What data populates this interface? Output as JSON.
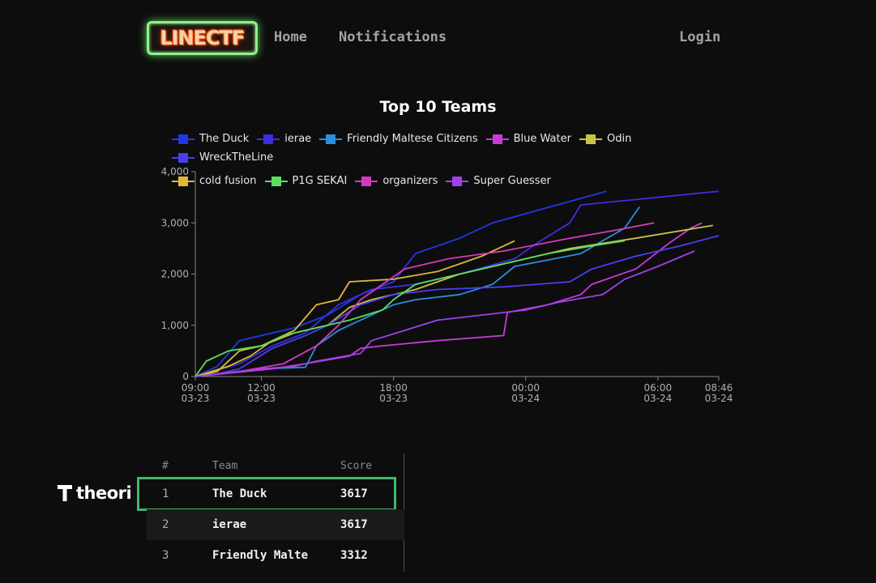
{
  "nav": {
    "logo_text": "LINECTF",
    "links": [
      "Home",
      "Notifications"
    ],
    "login": "Login"
  },
  "colors": {
    "background": "#0d0d0d",
    "logo_border": "#8df08a",
    "highlight_border": "#3fb86a"
  },
  "chart_data": {
    "type": "line",
    "title": "Top 10 Teams",
    "xlabel": "",
    "ylabel": "",
    "ylim": [
      0,
      4000
    ],
    "yticks": [
      "0",
      "1,000",
      "2,000",
      "3,000",
      "4,000"
    ],
    "xlim": [
      "2024-03-23 09:00",
      "2024-03-24 08:46"
    ],
    "xticks": [
      {
        "t": "2024-03-23 09:00",
        "time": "09:00",
        "date": "03-23"
      },
      {
        "t": "2024-03-23 12:00",
        "time": "12:00",
        "date": "03-23"
      },
      {
        "t": "2024-03-23 18:00",
        "time": "18:00",
        "date": "03-23"
      },
      {
        "t": "2024-03-24 00:00",
        "time": "00:00",
        "date": "03-24"
      },
      {
        "t": "2024-03-24 06:00",
        "time": "06:00",
        "date": "03-24"
      },
      {
        "t": "2024-03-24 08:46",
        "time": "08:46",
        "date": "03-24"
      }
    ],
    "grid": false,
    "legend": "top",
    "series": [
      {
        "name": "The Duck",
        "color": "#2038e8",
        "points": [
          [
            "2024-03-23 09:00",
            0
          ],
          [
            "2024-03-23 10:00",
            200
          ],
          [
            "2024-03-23 11:00",
            700
          ],
          [
            "2024-03-23 12:00",
            800
          ],
          [
            "2024-03-23 13:30",
            950
          ],
          [
            "2024-03-23 15:00",
            1200
          ],
          [
            "2024-03-23 16:30",
            1600
          ],
          [
            "2024-03-23 18:00",
            1850
          ],
          [
            "2024-03-23 19:00",
            2400
          ],
          [
            "2024-03-23 21:00",
            2700
          ],
          [
            "2024-03-23 22:30",
            3000
          ],
          [
            "2024-03-24 01:00",
            3300
          ],
          [
            "2024-03-24 03:40",
            3617
          ]
        ]
      },
      {
        "name": "ierae",
        "color": "#3b2ee0",
        "points": [
          [
            "2024-03-23 09:00",
            0
          ],
          [
            "2024-03-23 11:00",
            250
          ],
          [
            "2024-03-23 12:30",
            600
          ],
          [
            "2024-03-23 14:00",
            850
          ],
          [
            "2024-03-23 15:30",
            1400
          ],
          [
            "2024-03-23 17:00",
            1700
          ],
          [
            "2024-03-23 19:00",
            1800
          ],
          [
            "2024-03-23 21:00",
            2000
          ],
          [
            "2024-03-23 23:30",
            2300
          ],
          [
            "2024-03-24 00:30",
            2600
          ],
          [
            "2024-03-24 02:00",
            3000
          ],
          [
            "2024-03-24 02:30",
            3350
          ],
          [
            "2024-03-24 08:46",
            3617
          ]
        ]
      },
      {
        "name": "Friendly Maltese Citizens",
        "color": "#2a8ee0",
        "points": [
          [
            "2024-03-23 09:00",
            0
          ],
          [
            "2024-03-23 12:00",
            150
          ],
          [
            "2024-03-23 14:00",
            180
          ],
          [
            "2024-03-23 14:30",
            600
          ],
          [
            "2024-03-23 15:30",
            900
          ],
          [
            "2024-03-23 17:00",
            1200
          ],
          [
            "2024-03-23 18:00",
            1400
          ],
          [
            "2024-03-23 19:00",
            1500
          ],
          [
            "2024-03-23 21:00",
            1600
          ],
          [
            "2024-03-23 22:30",
            1800
          ],
          [
            "2024-03-23 23:30",
            2150
          ],
          [
            "2024-03-24 02:30",
            2400
          ],
          [
            "2024-03-24 04:30",
            2900
          ],
          [
            "2024-03-24 05:10",
            3312
          ]
        ]
      },
      {
        "name": "Blue Water",
        "color": "#c93ad8",
        "points": [
          [
            "2024-03-23 09:00",
            0
          ],
          [
            "2024-03-23 12:30",
            150
          ],
          [
            "2024-03-23 14:00",
            250
          ],
          [
            "2024-03-23 16:00",
            400
          ],
          [
            "2024-03-23 16:30",
            550
          ],
          [
            "2024-03-23 17:30",
            600
          ],
          [
            "2024-03-23 20:00",
            700
          ],
          [
            "2024-03-23 23:00",
            800
          ],
          [
            "2024-03-23 23:10",
            1250
          ],
          [
            "2024-03-24 01:00",
            1400
          ],
          [
            "2024-03-24 02:30",
            1600
          ],
          [
            "2024-03-24 03:00",
            1800
          ],
          [
            "2024-03-24 05:00",
            2100
          ],
          [
            "2024-03-24 06:30",
            2600
          ],
          [
            "2024-03-24 07:30",
            2900
          ],
          [
            "2024-03-24 08:00",
            3000
          ]
        ]
      },
      {
        "name": "Odin",
        "color": "#c8c248",
        "points": [
          [
            "2024-03-23 09:00",
            0
          ],
          [
            "2024-03-23 10:00",
            100
          ],
          [
            "2024-03-23 11:00",
            500
          ],
          [
            "2024-03-23 12:00",
            600
          ],
          [
            "2024-03-23 13:30",
            850
          ],
          [
            "2024-03-23 15:00",
            1000
          ],
          [
            "2024-03-23 16:00",
            1350
          ],
          [
            "2024-03-23 17:00",
            1500
          ],
          [
            "2024-03-23 19:00",
            1700
          ],
          [
            "2024-03-23 21:00",
            2000
          ],
          [
            "2024-03-23 23:00",
            2200
          ],
          [
            "2024-03-24 02:00",
            2500
          ],
          [
            "2024-03-24 05:00",
            2700
          ],
          [
            "2024-03-24 08:30",
            2950
          ]
        ]
      },
      {
        "name": "WreckTheLine",
        "color": "#4a3ef0",
        "points": [
          [
            "2024-03-23 09:00",
            0
          ],
          [
            "2024-03-23 10:00",
            50
          ],
          [
            "2024-03-23 11:00",
            150
          ],
          [
            "2024-03-23 12:30",
            550
          ],
          [
            "2024-03-23 14:00",
            800
          ],
          [
            "2024-03-23 15:00",
            1000
          ],
          [
            "2024-03-23 16:30",
            1400
          ],
          [
            "2024-03-23 18:00",
            1600
          ],
          [
            "2024-03-23 20:00",
            1700
          ],
          [
            "2024-03-23 23:00",
            1750
          ],
          [
            "2024-03-24 02:00",
            1850
          ],
          [
            "2024-03-24 03:00",
            2100
          ],
          [
            "2024-03-24 05:00",
            2350
          ],
          [
            "2024-03-24 07:00",
            2550
          ],
          [
            "2024-03-24 08:46",
            2750
          ]
        ]
      },
      {
        "name": "cold fusion",
        "color": "#e0b838",
        "points": [
          [
            "2024-03-23 09:00",
            0
          ],
          [
            "2024-03-23 10:30",
            200
          ],
          [
            "2024-03-23 11:30",
            400
          ],
          [
            "2024-03-23 12:30",
            700
          ],
          [
            "2024-03-23 13:30",
            900
          ],
          [
            "2024-03-23 14:30",
            1400
          ],
          [
            "2024-03-23 15:30",
            1500
          ],
          [
            "2024-03-23 16:00",
            1850
          ],
          [
            "2024-03-23 18:00",
            1900
          ],
          [
            "2024-03-23 20:00",
            2050
          ],
          [
            "2024-03-23 22:00",
            2350
          ],
          [
            "2024-03-23 23:30",
            2650
          ]
        ]
      },
      {
        "name": "P1G SEKAI",
        "color": "#58e060",
        "points": [
          [
            "2024-03-23 09:00",
            0
          ],
          [
            "2024-03-23 09:30",
            300
          ],
          [
            "2024-03-23 10:30",
            500
          ],
          [
            "2024-03-23 12:00",
            600
          ],
          [
            "2024-03-23 13:00",
            800
          ],
          [
            "2024-03-23 14:30",
            950
          ],
          [
            "2024-03-23 16:00",
            1100
          ],
          [
            "2024-03-23 17:30",
            1300
          ],
          [
            "2024-03-23 18:00",
            1500
          ],
          [
            "2024-03-23 19:00",
            1800
          ],
          [
            "2024-03-23 21:00",
            2000
          ],
          [
            "2024-03-23 23:00",
            2200
          ],
          [
            "2024-03-24 01:00",
            2400
          ],
          [
            "2024-03-24 03:00",
            2550
          ],
          [
            "2024-03-24 04:30",
            2650
          ]
        ]
      },
      {
        "name": "organizers",
        "color": "#d23ac0",
        "points": [
          [
            "2024-03-23 09:00",
            0
          ],
          [
            "2024-03-23 11:00",
            100
          ],
          [
            "2024-03-23 13:00",
            250
          ],
          [
            "2024-03-23 14:30",
            600
          ],
          [
            "2024-03-23 15:30",
            1000
          ],
          [
            "2024-03-23 16:30",
            1500
          ],
          [
            "2024-03-23 18:30",
            2100
          ],
          [
            "2024-03-23 20:30",
            2300
          ],
          [
            "2024-03-23 23:00",
            2450
          ],
          [
            "2024-03-24 02:00",
            2700
          ],
          [
            "2024-03-24 04:00",
            2850
          ],
          [
            "2024-03-24 05:50",
            3000
          ]
        ]
      },
      {
        "name": "Super Guesser",
        "color": "#a040e8",
        "points": [
          [
            "2024-03-23 09:00",
            0
          ],
          [
            "2024-03-23 12:00",
            150
          ],
          [
            "2024-03-23 13:30",
            200
          ],
          [
            "2024-03-23 14:30",
            300
          ],
          [
            "2024-03-23 16:30",
            450
          ],
          [
            "2024-03-23 17:00",
            700
          ],
          [
            "2024-03-23 18:30",
            900
          ],
          [
            "2024-03-23 20:00",
            1100
          ],
          [
            "2024-03-23 22:00",
            1200
          ],
          [
            "2024-03-24 00:00",
            1300
          ],
          [
            "2024-03-24 01:30",
            1450
          ],
          [
            "2024-03-24 03:30",
            1600
          ],
          [
            "2024-03-24 04:30",
            1900
          ],
          [
            "2024-03-24 06:00",
            2150
          ],
          [
            "2024-03-24 07:40",
            2450
          ]
        ]
      }
    ]
  },
  "sponsor": {
    "name": "theori"
  },
  "table": {
    "headers": {
      "rank": "#",
      "team": "Team",
      "score": "Score"
    },
    "rows": [
      {
        "rank": "1",
        "team": "The Duck",
        "score": "3617"
      },
      {
        "rank": "2",
        "team": "ierae",
        "score": "3617"
      },
      {
        "rank": "3",
        "team": "Friendly Malte",
        "score": "3312"
      }
    ]
  }
}
